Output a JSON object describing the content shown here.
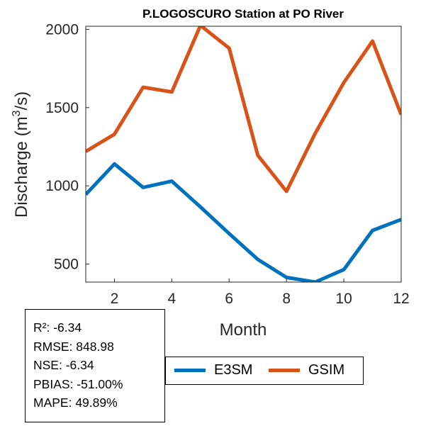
{
  "chart_data": {
    "type": "line",
    "title": "P.LOGOSCURO  Station at  PO  River",
    "xlabel": "Month",
    "ylabel": "Discharge (m",
    "ylabel_sup": "3",
    "ylabel_tail": "/s)",
    "xlim": [
      1,
      12
    ],
    "ylim": [
      385,
      2020
    ],
    "x_ticks": [
      2,
      4,
      6,
      8,
      10,
      12
    ],
    "y_ticks": [
      500,
      1000,
      1500,
      2000
    ],
    "x": [
      1,
      2,
      3,
      4,
      5,
      6,
      7,
      8,
      9,
      10,
      11,
      12
    ],
    "series": [
      {
        "name": "E3SM",
        "color": "#0072BD",
        "values": [
          945,
          1140,
          990,
          1030,
          865,
          695,
          530,
          415,
          385,
          465,
          715,
          785
        ]
      },
      {
        "name": "GSIM",
        "color": "#D95319",
        "values": [
          1220,
          1330,
          1630,
          1600,
          2025,
          1880,
          1195,
          965,
          1335,
          1660,
          1925,
          1455
        ]
      }
    ],
    "grid": false,
    "legend_position": "bottom-right"
  },
  "stats": [
    "R²: -6.34",
    "RMSE: 848.98",
    "NSE: -6.34",
    "PBIAS: -51.00%",
    "MAPE: 49.89%"
  ],
  "legend": [
    {
      "label": "E3SM",
      "color": "#0072BD"
    },
    {
      "label": "GSIM",
      "color": "#D95319"
    }
  ]
}
